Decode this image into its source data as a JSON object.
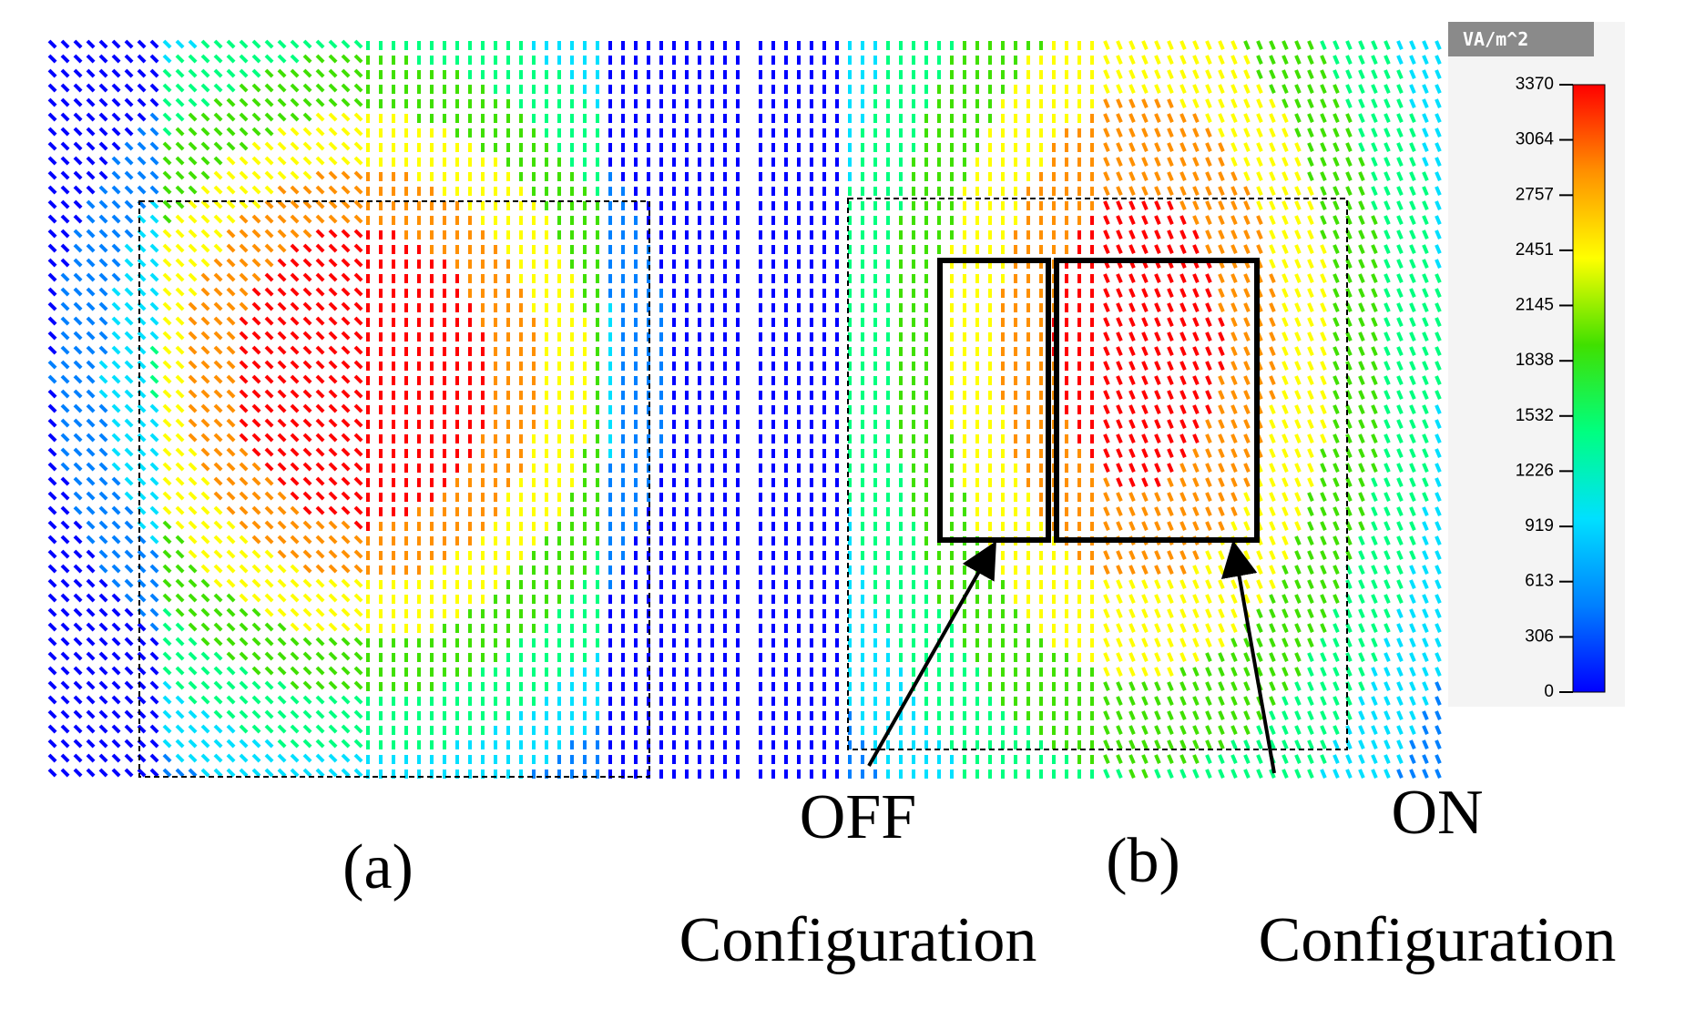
{
  "colorbar": {
    "unit": "VA/m^2",
    "range": [
      0,
      3370
    ],
    "ticks": [
      0,
      306,
      613,
      919,
      1226,
      1532,
      1838,
      2145,
      2451,
      2757,
      3064,
      3370
    ],
    "colors": [
      "#0000ff",
      "#0080ff",
      "#00e0ff",
      "#00ff80",
      "#40e000",
      "#ffff00",
      "#ff9000",
      "#ff0000"
    ]
  },
  "panels": [
    {
      "label": "(a)"
    },
    {
      "label": "(b)"
    }
  ],
  "annotations": [
    {
      "state": "OFF",
      "text": "Configuration"
    },
    {
      "state": "ON",
      "text": "Configuration"
    }
  ]
}
